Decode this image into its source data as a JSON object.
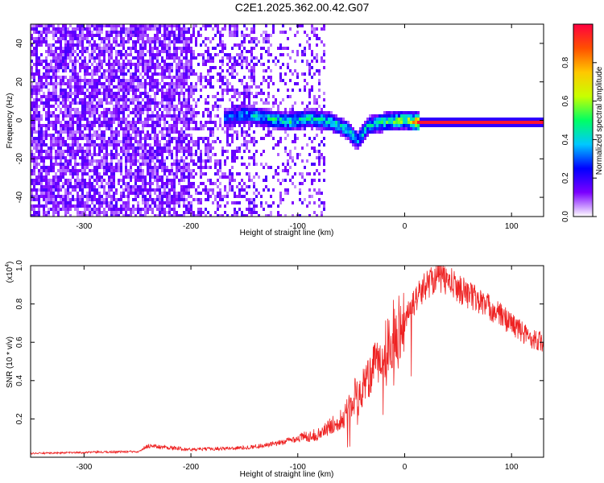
{
  "title": "C2E1.2025.362.00.42.G07",
  "chart_data": [
    {
      "type": "heatmap",
      "name": "spectrogram",
      "xlabel": "Height of straight line (km)",
      "ylabel": "Frequency (Hz)",
      "xlim": [
        -350,
        130
      ],
      "ylim": [
        -50,
        50
      ],
      "xticks": [
        -300,
        -200,
        -100,
        0,
        100
      ],
      "yticks": [
        -40,
        -20,
        0,
        20,
        40
      ],
      "colorbar": {
        "label": "Normalized spectral amplitude",
        "range": [
          0,
          1
        ],
        "ticks": [
          "0.0",
          "0.2",
          "0.4",
          "0.6",
          "0.8"
        ],
        "colors": [
          "#ffffff",
          "#7b00ff",
          "#0000ff",
          "#00c8ff",
          "#00ff64",
          "#c8ff00",
          "#ffc800",
          "#ff5000",
          "#ff0040"
        ]
      },
      "features": {
        "noise_region_x": [
          -350,
          -75
        ],
        "signal_track": [
          {
            "x": -170,
            "f": 2,
            "amp": 0.35
          },
          {
            "x": -150,
            "f": 4,
            "amp": 0.45
          },
          {
            "x": -130,
            "f": 2,
            "amp": 0.5
          },
          {
            "x": -110,
            "f": 0,
            "amp": 0.55
          },
          {
            "x": -90,
            "f": 2,
            "amp": 0.5
          },
          {
            "x": -70,
            "f": 0,
            "amp": 0.55
          },
          {
            "x": -55,
            "f": -4,
            "amp": 0.5
          },
          {
            "x": -45,
            "f": -10,
            "amp": 0.45
          },
          {
            "x": -35,
            "f": -2,
            "amp": 0.5
          },
          {
            "x": -20,
            "f": 0,
            "amp": 0.6
          },
          {
            "x": 0,
            "f": 1,
            "amp": 0.7
          },
          {
            "x": 10,
            "f": 0,
            "amp": 0.95
          },
          {
            "x": 130,
            "f": 0,
            "amp": 0.95
          }
        ]
      }
    },
    {
      "type": "line",
      "name": "snr",
      "xlabel": "Height of straight line (km)",
      "ylabel": "SNR (10 * v/v)",
      "multiplier_label": "(x10",
      "multiplier_exp": "4",
      "xlim": [
        -350,
        130
      ],
      "ylim": [
        0,
        1.0
      ],
      "xticks": [
        -300,
        -200,
        -100,
        0,
        100
      ],
      "yticks": [
        0.2,
        0.4,
        0.6,
        0.8,
        1.0
      ],
      "ytick_labels": [
        "0.2",
        "0.4",
        "0.6",
        "0.8",
        "1.0"
      ],
      "color": "#ee2222",
      "envelope": [
        {
          "x": -350,
          "y": 0.02
        },
        {
          "x": -250,
          "y": 0.03
        },
        {
          "x": -240,
          "y": 0.06
        },
        {
          "x": -200,
          "y": 0.04
        },
        {
          "x": -150,
          "y": 0.05
        },
        {
          "x": -120,
          "y": 0.07
        },
        {
          "x": -100,
          "y": 0.1
        },
        {
          "x": -80,
          "y": 0.12
        },
        {
          "x": -60,
          "y": 0.2
        },
        {
          "x": -40,
          "y": 0.35
        },
        {
          "x": -30,
          "y": 0.45
        },
        {
          "x": -20,
          "y": 0.55
        },
        {
          "x": -10,
          "y": 0.65
        },
        {
          "x": 0,
          "y": 0.72
        },
        {
          "x": 10,
          "y": 0.82
        },
        {
          "x": 20,
          "y": 0.9
        },
        {
          "x": 30,
          "y": 0.95
        },
        {
          "x": 40,
          "y": 0.92
        },
        {
          "x": 60,
          "y": 0.85
        },
        {
          "x": 80,
          "y": 0.78
        },
        {
          "x": 100,
          "y": 0.7
        },
        {
          "x": 115,
          "y": 0.63
        },
        {
          "x": 130,
          "y": 0.6
        }
      ]
    }
  ]
}
